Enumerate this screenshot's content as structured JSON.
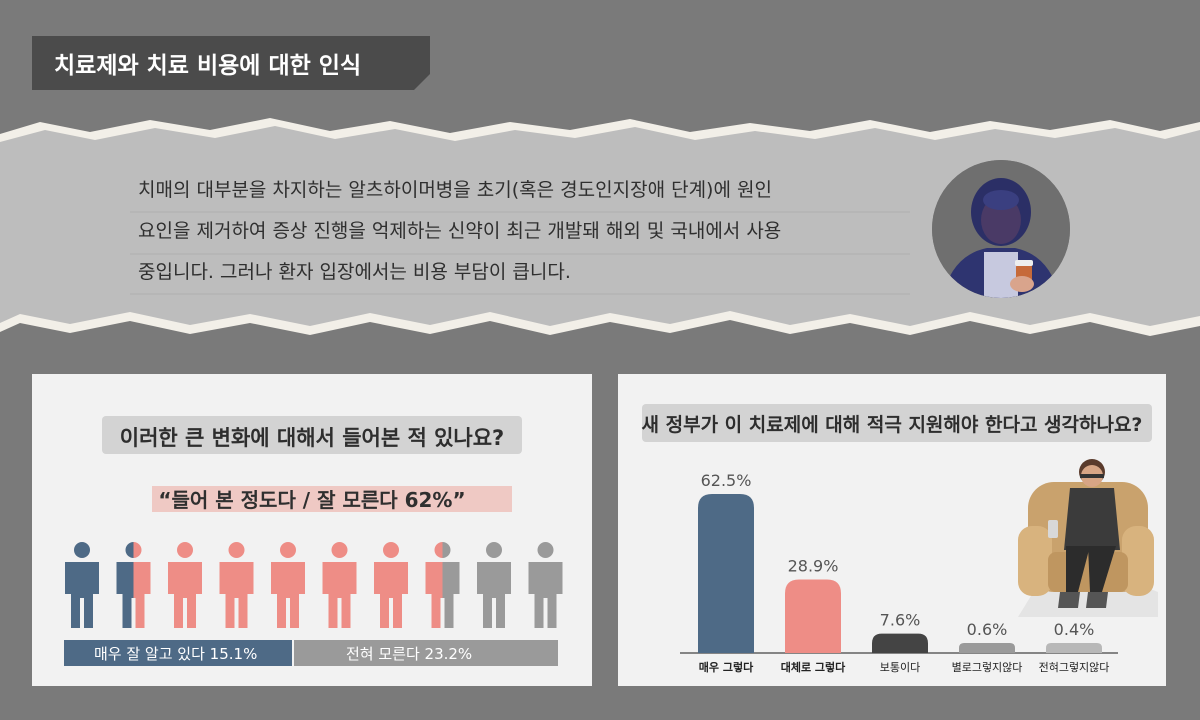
{
  "header": {
    "title": "치료제와 치료 비용에 대한 인식"
  },
  "intro": {
    "lines": [
      "치매의 대부분을 차지하는 알츠하이머병을 초기(혹은 경도인지장애 단계)에 원인",
      "요인을 제거하여 증상 진행을 억제하는 신약이 최근 개발돼 해외 및 국내에서 사용",
      "중입니다. 그러나 환자 입장에서는 비용 부담이 큽니다."
    ]
  },
  "awareness": {
    "question": "이러한 큰 변화에 대해서 들어본 적 있나요?",
    "highlight": "“들어 본 정도다 / 잘 모른다 62%”",
    "labels": {
      "well_known": "매우 잘 알고 있다 15.1%",
      "unknown": "전혀 모른다 23.2%"
    }
  },
  "colors": {
    "navy": "#4e6a86",
    "salmon": "#ee8d86",
    "dark": "#444444",
    "gray": "#9a9a9a",
    "lightgray": "#b8b8b8"
  },
  "chart_data": [
    {
      "type": "pictogram",
      "title": "이러한 큰 변화에 대해서 들어본 적 있나요?",
      "series": [
        {
          "name": "매우 잘 알고 있다",
          "value": 15.1,
          "color": "#4e6a86"
        },
        {
          "name": "들어 본 정도다 / 잘 모른다",
          "value": 62,
          "color": "#ee8d86"
        },
        {
          "name": "전혀 모른다",
          "value": 23.2,
          "color": "#9a9a9a"
        }
      ],
      "icons": 10
    },
    {
      "type": "bar",
      "title": "새 정부가 이 치료제에 대해 적극 지원해야 한다고 생각하나요?",
      "categories": [
        "매우 그렇다",
        "대체로 그렇다",
        "보통이다",
        "별로그렇지않다",
        "전혀그렇지않다"
      ],
      "values": [
        62.5,
        28.9,
        7.6,
        0.6,
        0.4
      ],
      "value_labels": [
        "62.5%",
        "28.9%",
        "7.6%",
        "0.6%",
        "0.4%"
      ],
      "colors": [
        "#4e6a86",
        "#ee8d86",
        "#444444",
        "#9a9a9a",
        "#b8b8b8"
      ]
    }
  ]
}
